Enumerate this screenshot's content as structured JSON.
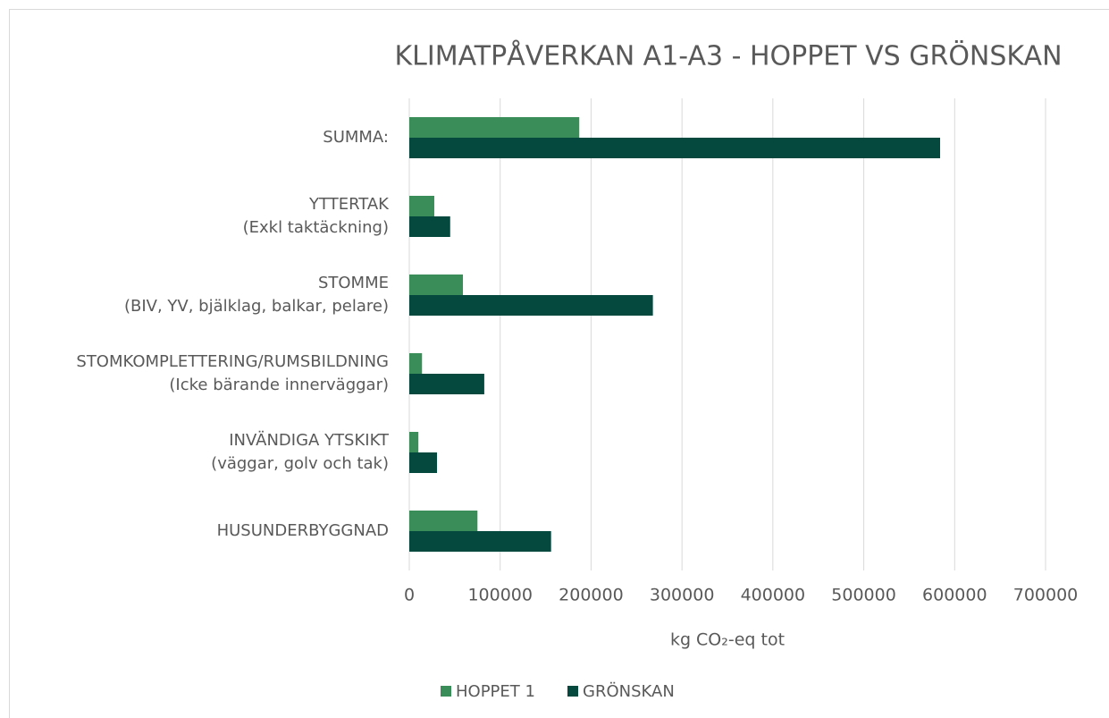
{
  "chart_data": {
    "type": "barh",
    "title": "KLIMATPÅVERKAN A1-A3 - HOPPET VS GRÖNSKAN",
    "x_label": "kg CO₂-eq tot",
    "categories": [
      [
        "SUMMA:"
      ],
      [
        "YTTERTAK",
        "(Exkl taktäckning)"
      ],
      [
        "STOMME",
        "(BIV, YV, bjälklag, balkar, pelare)"
      ],
      [
        "STOMKOMPLETTERING/RUMSBILDNING",
        "(Icke bärande innerväggar)"
      ],
      [
        "INVÄNDIGA YTSKIKT",
        "(väggar, golv och tak)"
      ],
      [
        "HUSUNDERBYGGNAD"
      ]
    ],
    "series": [
      {
        "name": "HOPPET 1",
        "color": "#3a8c59",
        "values": [
          187000,
          27500,
          59000,
          14000,
          10000,
          75000
        ]
      },
      {
        "name": "GRÖNSKAN",
        "color": "#05493e",
        "values": [
          584000,
          45000,
          268000,
          82500,
          30500,
          156000
        ]
      }
    ],
    "xlim": [
      0,
      700000
    ],
    "xticks": [
      0,
      100000,
      200000,
      300000,
      400000,
      500000,
      600000,
      700000
    ],
    "grid": true,
    "legend": "bottom"
  }
}
